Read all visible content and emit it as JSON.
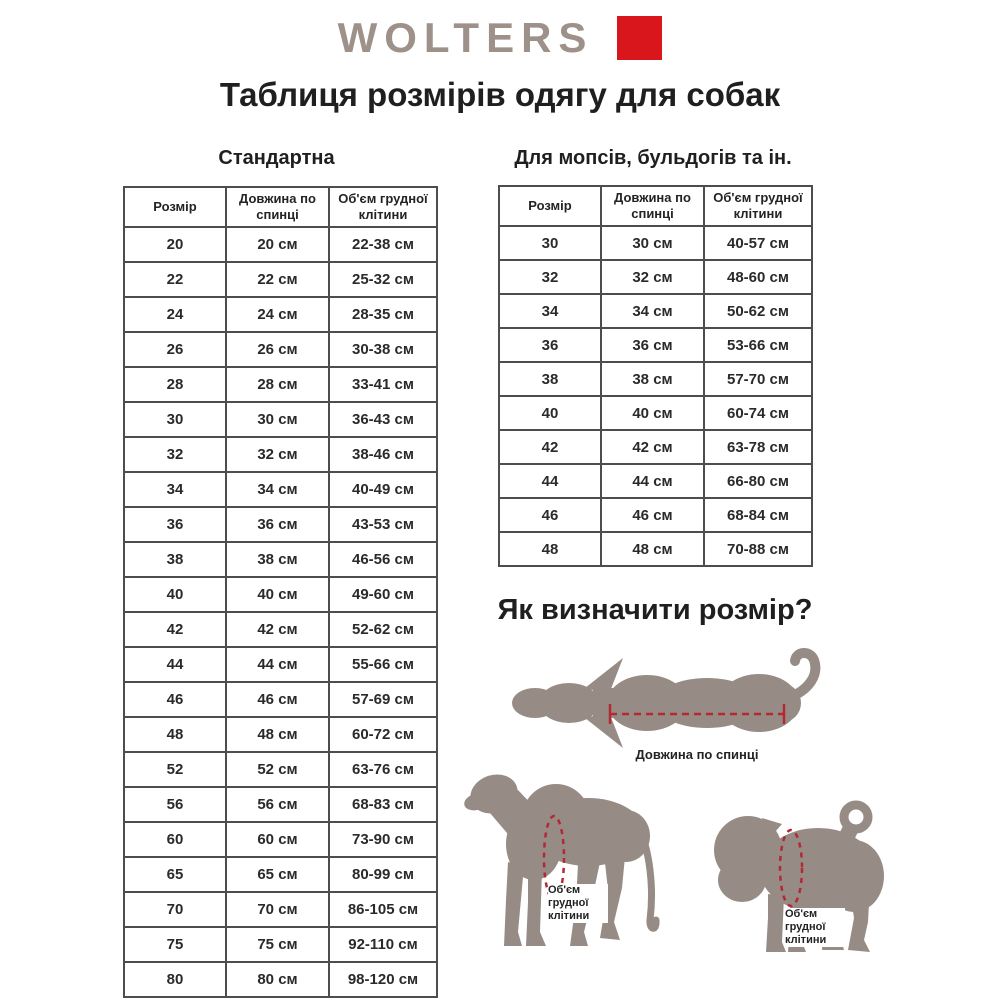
{
  "brand": {
    "logo_text": "WOLTERS"
  },
  "page_title": "Таблиця розмірів одягу для собак",
  "tables": [
    {
      "heading": "Стандартна",
      "columns": [
        "Розмір",
        "Довжина по спинці",
        "Об'єм грудної клітини"
      ],
      "rows": [
        [
          "20",
          "20 см",
          "22-38 см"
        ],
        [
          "22",
          "22 см",
          "25-32 см"
        ],
        [
          "24",
          "24 см",
          "28-35 см"
        ],
        [
          "26",
          "26 см",
          "30-38 см"
        ],
        [
          "28",
          "28 см",
          "33-41 см"
        ],
        [
          "30",
          "30 см",
          "36-43 см"
        ],
        [
          "32",
          "32 см",
          "38-46 см"
        ],
        [
          "34",
          "34 см",
          "40-49 см"
        ],
        [
          "36",
          "36 см",
          "43-53 см"
        ],
        [
          "38",
          "38 см",
          "46-56 см"
        ],
        [
          "40",
          "40 см",
          "49-60 см"
        ],
        [
          "42",
          "42 см",
          "52-62 см"
        ],
        [
          "44",
          "44 см",
          "55-66 см"
        ],
        [
          "46",
          "46 см",
          "57-69 см"
        ],
        [
          "48",
          "48 см",
          "60-72 см"
        ],
        [
          "52",
          "52 см",
          "63-76 см"
        ],
        [
          "56",
          "56 см",
          "68-83 см"
        ],
        [
          "60",
          "60 см",
          "73-90 см"
        ],
        [
          "65",
          "65 см",
          "80-99 см"
        ],
        [
          "70",
          "70 см",
          "86-105 см"
        ],
        [
          "75",
          "75 см",
          "92-110 см"
        ],
        [
          "80",
          "80 см",
          "98-120 см"
        ]
      ]
    },
    {
      "heading": "Для мопсів, бульдогів та ін.",
      "columns": [
        "Розмір",
        "Довжина по спинці",
        "Об'єм грудної клітини"
      ],
      "rows": [
        [
          "30",
          "30 см",
          "40-57 см"
        ],
        [
          "32",
          "32 см",
          "48-60 см"
        ],
        [
          "34",
          "34 см",
          "50-62 см"
        ],
        [
          "36",
          "36 см",
          "53-66 см"
        ],
        [
          "38",
          "38 см",
          "57-70 см"
        ],
        [
          "40",
          "40 см",
          "60-74 см"
        ],
        [
          "42",
          "42 см",
          "63-78 см"
        ],
        [
          "44",
          "44 см",
          "66-80 см"
        ],
        [
          "46",
          "46 см",
          "68-84 см"
        ],
        [
          "48",
          "48 см",
          "70-88 см"
        ]
      ]
    }
  ],
  "guide": {
    "heading": "Як визначити розмір?",
    "back_length_label": "Довжина по спинці",
    "chest_label": "Об'єм грудної клітини"
  },
  "colors": {
    "brand_red": "#d9161c",
    "logo_gray": "#9e9189",
    "silhouette": "#968c85",
    "measure_red": "#b42834"
  }
}
